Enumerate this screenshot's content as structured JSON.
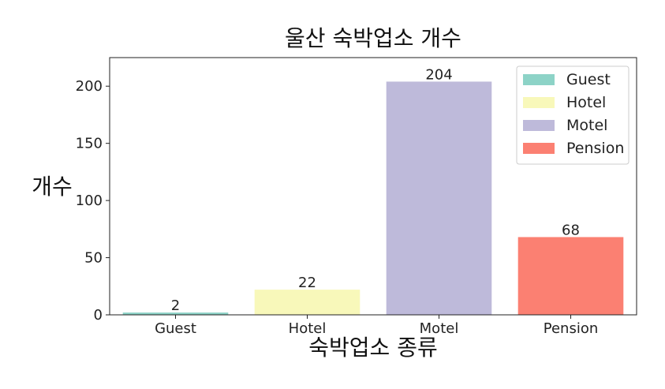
{
  "chart_data": {
    "type": "bar",
    "title": "울산 숙박업소 개수",
    "xlabel": "숙박업소 종류",
    "ylabel": "개수",
    "categories": [
      "Guest",
      "Hotel",
      "Motel",
      "Pension"
    ],
    "values": [
      2,
      22,
      204,
      68
    ],
    "colors": [
      "#8dd3c7",
      "#f8f8ba",
      "#bebada",
      "#fb8072"
    ],
    "data_labels": [
      "2",
      "22",
      "204",
      "68"
    ],
    "ylim": [
      0,
      225
    ],
    "yticks": [
      0,
      50,
      100,
      150,
      200
    ],
    "grid": false,
    "legend": {
      "position": "top-right",
      "entries": [
        "Guest",
        "Hotel",
        "Motel",
        "Pension"
      ]
    }
  }
}
